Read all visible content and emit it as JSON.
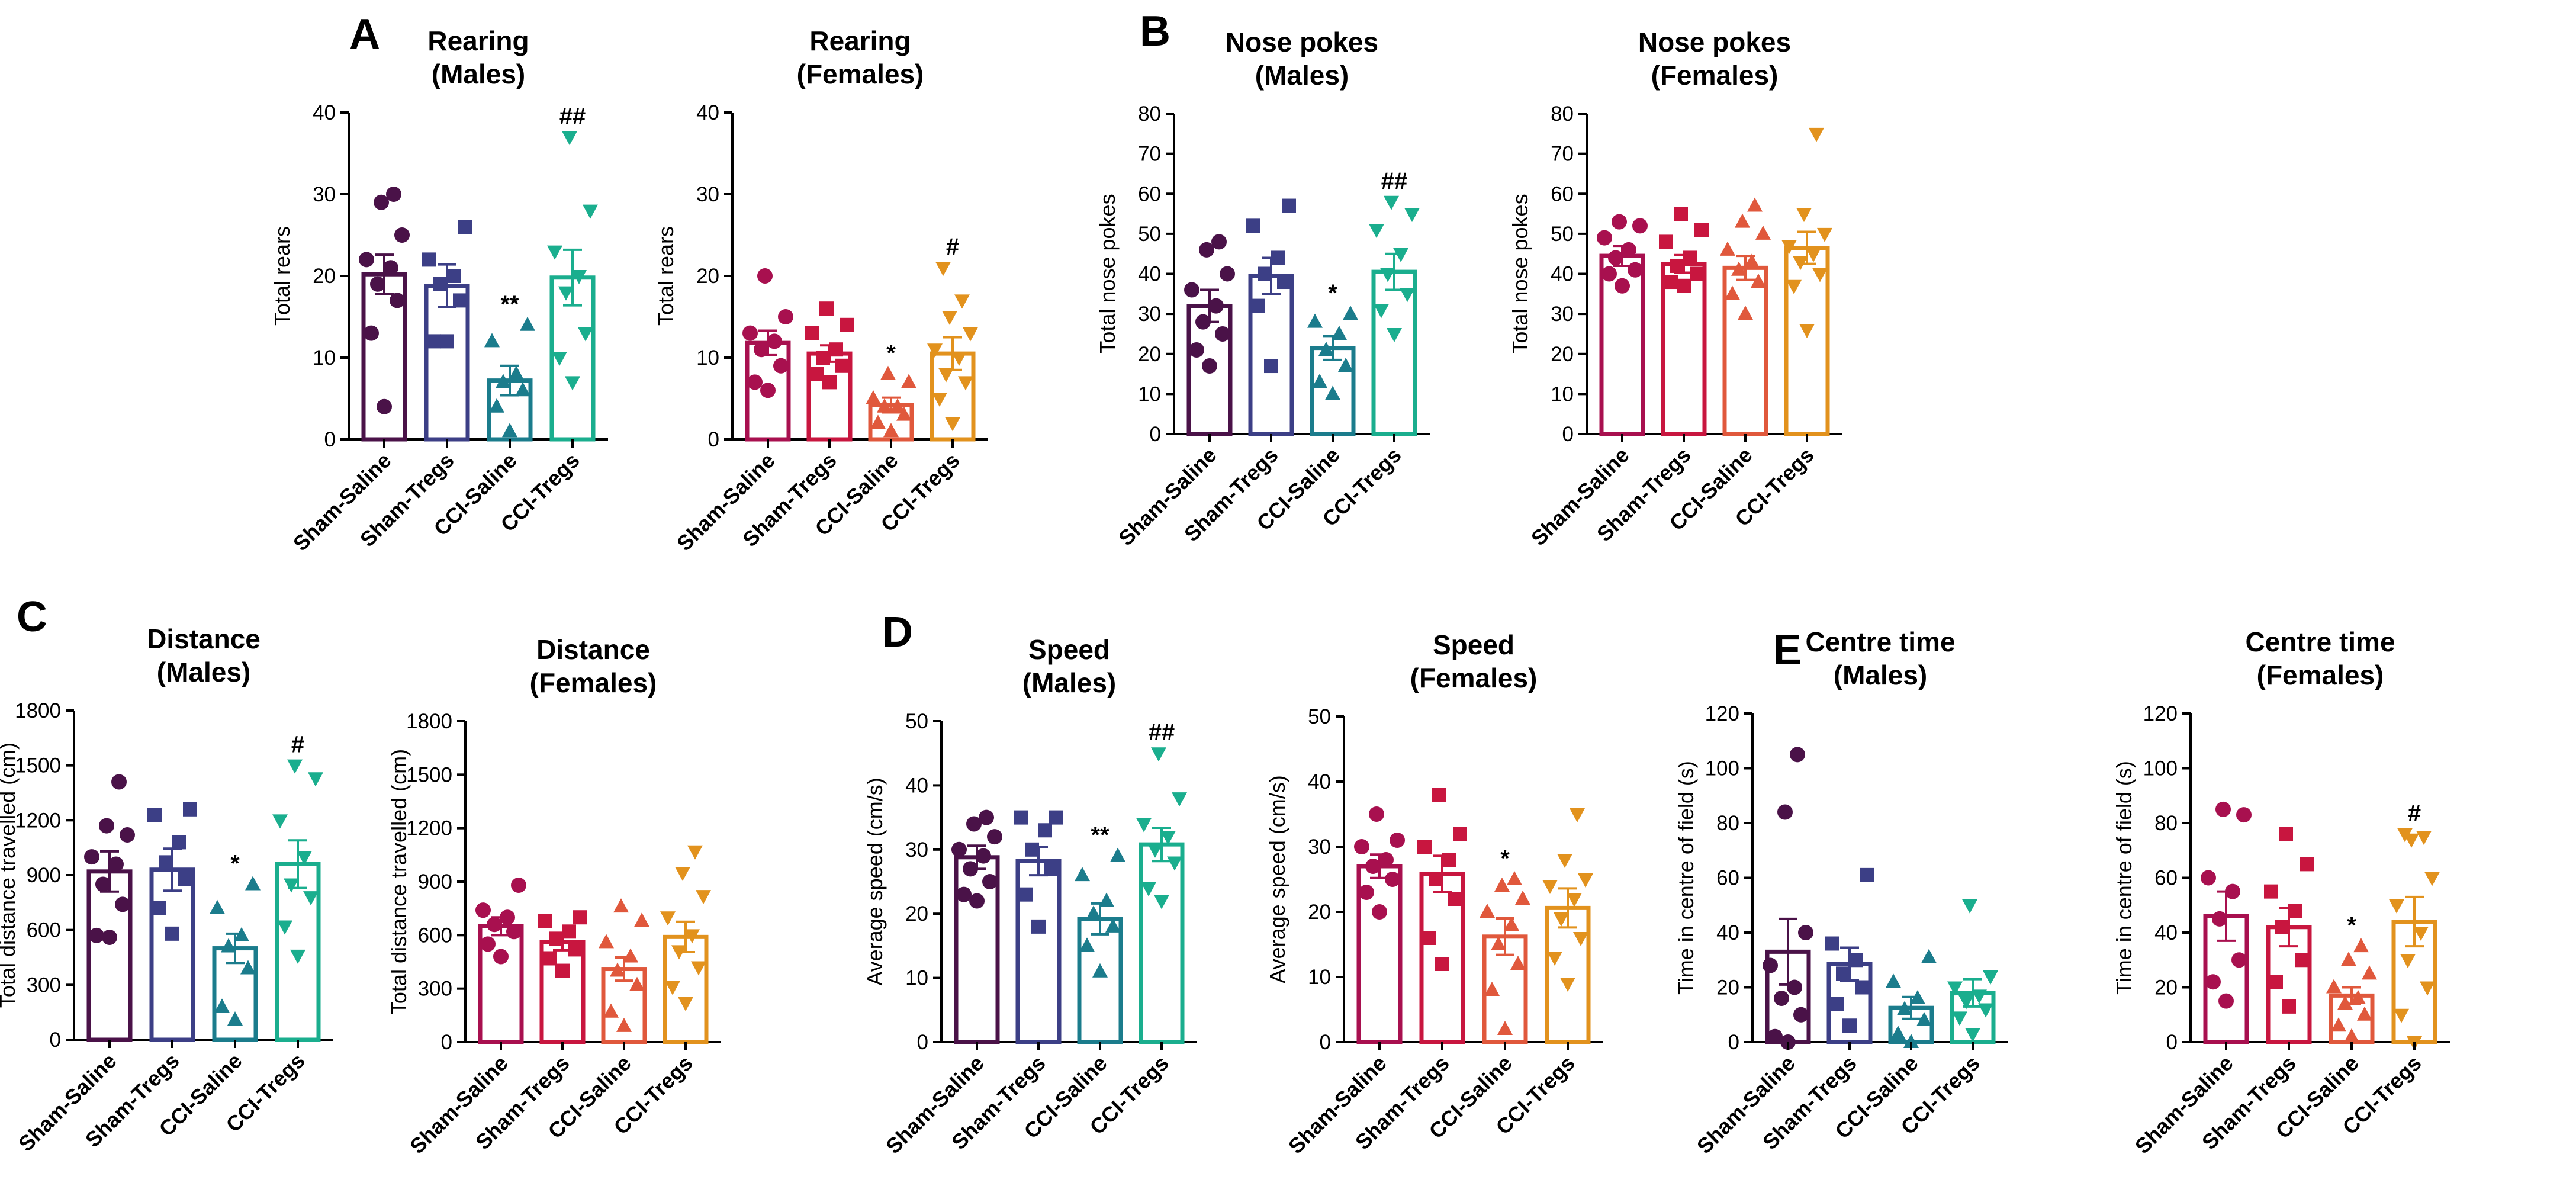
{
  "panels": [
    {
      "letter": "A"
    },
    {
      "letter": "B"
    },
    {
      "letter": "C"
    },
    {
      "letter": "D"
    },
    {
      "letter": "E"
    }
  ],
  "chart_data": [
    {
      "type": "bar",
      "panel": "A",
      "title": [
        "Rearing",
        "(Males)"
      ],
      "ylabel": "Total rears",
      "ylim": [
        0,
        40
      ],
      "yticks": [
        0,
        10,
        20,
        30,
        40
      ],
      "categories": [
        "Sham-Saline",
        "Sham-Tregs",
        "CCI-Saline",
        "CCI-Tregs"
      ],
      "colors": [
        "#4a1248",
        "#3c3f86",
        "#1b7c8c",
        "#1aae8e"
      ],
      "markers": [
        "circle",
        "square",
        "triangle",
        "triangle-down"
      ],
      "means": [
        20.2,
        18.8,
        7.2,
        19.8
      ],
      "sem": [
        2.4,
        2.6,
        1.8,
        3.4
      ],
      "points": [
        [
          4,
          13,
          17,
          19,
          21,
          22,
          25,
          29,
          30
        ],
        [
          12,
          12,
          17,
          19,
          20,
          22,
          26
        ],
        [
          1,
          4,
          6,
          7,
          8,
          12,
          14
        ],
        [
          7,
          10,
          13,
          18,
          20,
          23,
          28,
          37
        ]
      ],
      "significance": [
        "",
        "",
        "**",
        "##"
      ]
    },
    {
      "type": "bar",
      "panel": "A",
      "title": [
        "Rearing",
        "(Females)"
      ],
      "ylabel": "Total rears",
      "ylim": [
        0,
        40
      ],
      "yticks": [
        0,
        10,
        20,
        30,
        40
      ],
      "categories": [
        "Sham-Saline",
        "Sham-Tregs",
        "CCI-Saline",
        "CCI-Tregs"
      ],
      "colors": [
        "#a8104f",
        "#c8163f",
        "#e0583c",
        "#e2921d"
      ],
      "markers": [
        "circle",
        "square",
        "triangle",
        "triangle-down"
      ],
      "means": [
        11.8,
        10.5,
        4.2,
        10.5
      ],
      "sem": [
        1.5,
        1.0,
        0.9,
        2.0
      ],
      "points": [
        [
          6,
          7,
          9,
          11,
          12,
          13,
          15,
          20
        ],
        [
          7,
          8,
          9,
          10,
          11,
          13,
          14,
          16
        ],
        [
          1,
          2,
          3,
          4,
          4,
          5,
          7,
          8
        ],
        [
          2,
          5,
          7,
          8,
          10,
          11,
          13,
          15,
          17,
          21
        ]
      ],
      "significance": [
        "",
        "",
        "*",
        "#"
      ]
    },
    {
      "type": "bar",
      "panel": "B",
      "title": [
        "Nose pokes",
        "(Males)"
      ],
      "ylabel": "Total nose pokes",
      "ylim": [
        0,
        80
      ],
      "yticks": [
        0,
        10,
        20,
        30,
        40,
        50,
        60,
        70,
        80
      ],
      "categories": [
        "Sham-Saline",
        "Sham-Tregs",
        "CCI-Saline",
        "CCI-Tregs"
      ],
      "colors": [
        "#4a1248",
        "#3c3f86",
        "#1b7c8c",
        "#1aae8e"
      ],
      "markers": [
        "circle",
        "square",
        "triangle",
        "triangle-down"
      ],
      "means": [
        32,
        39.5,
        21.5,
        40.5
      ],
      "sem": [
        4.0,
        4.5,
        3.0,
        4.5
      ],
      "points": [
        [
          17,
          21,
          25,
          28,
          32,
          36,
          40,
          46,
          48
        ],
        [
          17,
          32,
          38,
          40,
          44,
          52,
          57
        ],
        [
          10,
          13,
          17,
          21,
          25,
          28,
          30
        ],
        [
          25,
          31,
          35,
          40,
          45,
          51,
          55,
          58
        ]
      ],
      "significance": [
        "",
        "",
        "*",
        "##"
      ]
    },
    {
      "type": "bar",
      "panel": "B",
      "title": [
        "Nose pokes",
        "(Females)"
      ],
      "ylabel": "Total nose pokes",
      "ylim": [
        0,
        80
      ],
      "yticks": [
        0,
        10,
        20,
        30,
        40,
        50,
        60,
        70,
        80
      ],
      "categories": [
        "Sham-Saline",
        "Sham-Tregs",
        "CCI-Saline",
        "CCI-Tregs"
      ],
      "colors": [
        "#a8104f",
        "#c8163f",
        "#e0583c",
        "#e2921d"
      ],
      "markers": [
        "circle",
        "square",
        "triangle",
        "triangle-down"
      ],
      "means": [
        44.5,
        42.5,
        41.5,
        46.5
      ],
      "sem": [
        2.5,
        2.2,
        3.0,
        4.0
      ],
      "points": [
        [
          37,
          40,
          41,
          44,
          46,
          49,
          52,
          53
        ],
        [
          37,
          38,
          40,
          42,
          44,
          48,
          51,
          55
        ],
        [
          30,
          35,
          38,
          41,
          43,
          46,
          50,
          53,
          57
        ],
        [
          26,
          37,
          40,
          43,
          45,
          47,
          50,
          55,
          75
        ]
      ],
      "significance": [
        "",
        "",
        "",
        ""
      ]
    },
    {
      "type": "bar",
      "panel": "C",
      "title": [
        "Distance",
        "(Males)"
      ],
      "ylabel": "Total distance travelled (cm)",
      "ylim": [
        0,
        1800
      ],
      "yticks": [
        0,
        300,
        600,
        900,
        1200,
        1500,
        1800
      ],
      "categories": [
        "Sham-Saline",
        "Sham-Tregs",
        "CCI-Saline",
        "CCI-Tregs"
      ],
      "colors": [
        "#4a1248",
        "#3c3f86",
        "#1b7c8c",
        "#1aae8e"
      ],
      "markers": [
        "circle",
        "square",
        "triangle",
        "triangle-down"
      ],
      "means": [
        920,
        930,
        500,
        960
      ],
      "sem": [
        110,
        115,
        80,
        130
      ],
      "points": [
        [
          560,
          570,
          740,
          850,
          960,
          1000,
          1120,
          1170,
          1410
        ],
        [
          580,
          720,
          880,
          970,
          1080,
          1230,
          1260
        ],
        [
          110,
          180,
          390,
          510,
          570,
          720,
          850
        ],
        [
          460,
          620,
          780,
          850,
          1000,
          1200,
          1430,
          1500
        ]
      ],
      "significance": [
        "",
        "",
        "*",
        "#"
      ]
    },
    {
      "type": "bar",
      "panel": "C",
      "title": [
        "Distance",
        "(Females)"
      ],
      "ylabel": "Total distance travelled (cm)",
      "ylim": [
        0,
        1800
      ],
      "yticks": [
        0,
        300,
        600,
        900,
        1200,
        1500,
        1800
      ],
      "categories": [
        "Sham-Saline",
        "Sham-Tregs",
        "CCI-Saline",
        "CCI-Tregs"
      ],
      "colors": [
        "#a8104f",
        "#c8163f",
        "#e0583c",
        "#e2921d"
      ],
      "markers": [
        "circle",
        "square",
        "triangle",
        "triangle-down"
      ],
      "means": [
        650,
        560,
        410,
        590
      ],
      "sem": [
        50,
        45,
        65,
        85
      ],
      "points": [
        [
          480,
          550,
          620,
          660,
          700,
          740,
          880
        ],
        [
          400,
          470,
          520,
          580,
          620,
          680,
          700
        ],
        [
          90,
          170,
          320,
          400,
          480,
          560,
          680,
          760
        ],
        [
          220,
          310,
          420,
          510,
          600,
          700,
          820,
          950,
          1070
        ]
      ],
      "significance": [
        "",
        "",
        "",
        ""
      ]
    },
    {
      "type": "bar",
      "panel": "D",
      "title": [
        "Speed",
        "(Males)"
      ],
      "ylabel": "Average speed (cm/s)",
      "ylim": [
        0,
        50
      ],
      "yticks": [
        0,
        10,
        20,
        30,
        40,
        50
      ],
      "categories": [
        "Sham-Saline",
        "Sham-Tregs",
        "CCI-Saline",
        "CCI-Tregs"
      ],
      "colors": [
        "#4a1248",
        "#3c3f86",
        "#1b7c8c",
        "#1aae8e"
      ],
      "markers": [
        "circle",
        "square",
        "triangle",
        "triangle-down"
      ],
      "means": [
        28.8,
        28.2,
        19.2,
        30.8
      ],
      "sem": [
        1.8,
        2.2,
        2.4,
        2.6
      ],
      "points": [
        [
          22,
          23,
          25,
          27,
          29,
          30,
          32,
          34,
          35
        ],
        [
          18,
          23,
          27,
          30,
          33,
          35,
          35
        ],
        [
          11,
          15,
          18,
          20,
          22,
          26,
          29
        ],
        [
          22,
          24,
          28,
          30,
          32,
          34,
          38,
          45
        ]
      ],
      "significance": [
        "",
        "",
        "**",
        "##"
      ]
    },
    {
      "type": "bar",
      "panel": "D",
      "title": [
        "Speed",
        "(Females)"
      ],
      "ylabel": "Average speed (cm/s)",
      "ylim": [
        0,
        50
      ],
      "yticks": [
        0,
        10,
        20,
        30,
        40,
        50
      ],
      "categories": [
        "Sham-Saline",
        "Sham-Tregs",
        "CCI-Saline",
        "CCI-Tregs"
      ],
      "colors": [
        "#a8104f",
        "#c8163f",
        "#e0583c",
        "#e2921d"
      ],
      "markers": [
        "circle",
        "square",
        "triangle",
        "triangle-down"
      ],
      "means": [
        27,
        25.8,
        16.2,
        20.6
      ],
      "sem": [
        1.8,
        2.8,
        2.8,
        3.0
      ],
      "points": [
        [
          20,
          23,
          25,
          27,
          28,
          30,
          31,
          35
        ],
        [
          12,
          16,
          22,
          25,
          28,
          30,
          32,
          38
        ],
        [
          2,
          8,
          12,
          15,
          18,
          20,
          22,
          24,
          25
        ],
        [
          9,
          13,
          16,
          19,
          22,
          24,
          25,
          28,
          35
        ]
      ],
      "significance": [
        "",
        "",
        "*",
        ""
      ]
    },
    {
      "type": "bar",
      "panel": "E",
      "title": [
        "Centre time",
        "(Males)"
      ],
      "ylabel": "Time in centre of field (s)",
      "ylim": [
        0,
        120
      ],
      "yticks": [
        0,
        20,
        40,
        60,
        80,
        100,
        120
      ],
      "categories": [
        "Sham-Saline",
        "Sham-Tregs",
        "CCI-Saline",
        "CCI-Tregs"
      ],
      "colors": [
        "#4a1248",
        "#3c3f86",
        "#1b7c8c",
        "#1aae8e"
      ],
      "markers": [
        "circle",
        "square",
        "triangle",
        "triangle-down"
      ],
      "means": [
        33,
        28.5,
        12.5,
        18
      ],
      "sem": [
        12,
        6,
        4,
        5
      ],
      "points": [
        [
          0,
          2,
          10,
          16,
          20,
          28,
          40,
          84,
          105
        ],
        [
          6,
          14,
          20,
          25,
          30,
          36,
          61
        ],
        [
          0,
          3,
          8,
          12,
          16,
          22,
          31
        ],
        [
          3,
          9,
          12,
          15,
          17,
          20,
          24,
          50
        ]
      ],
      "significance": [
        "",
        "",
        "",
        ""
      ]
    },
    {
      "type": "bar",
      "panel": "E",
      "title": [
        "Centre time",
        "(Females)"
      ],
      "ylabel": "Time in centre of field (s)",
      "ylim": [
        0,
        120
      ],
      "yticks": [
        0,
        20,
        40,
        60,
        80,
        100,
        120
      ],
      "categories": [
        "Sham-Saline",
        "Sham-Tregs",
        "CCI-Saline",
        "CCI-Tregs"
      ],
      "colors": [
        "#a8104f",
        "#c8163f",
        "#e0583c",
        "#e2921d"
      ],
      "markers": [
        "circle",
        "square",
        "triangle",
        "triangle-down"
      ],
      "means": [
        46,
        42,
        17,
        44
      ],
      "sem": [
        9,
        7,
        3,
        9
      ],
      "points": [
        [
          15,
          22,
          30,
          45,
          55,
          60,
          83,
          85
        ],
        [
          13,
          22,
          30,
          42,
          48,
          55,
          65,
          76
        ],
        [
          2,
          6,
          10,
          14,
          16,
          20,
          25,
          30,
          35
        ],
        [
          0,
          10,
          20,
          30,
          40,
          50,
          60,
          74,
          75,
          76
        ]
      ],
      "significance": [
        "",
        "",
        "*",
        "#"
      ]
    }
  ]
}
